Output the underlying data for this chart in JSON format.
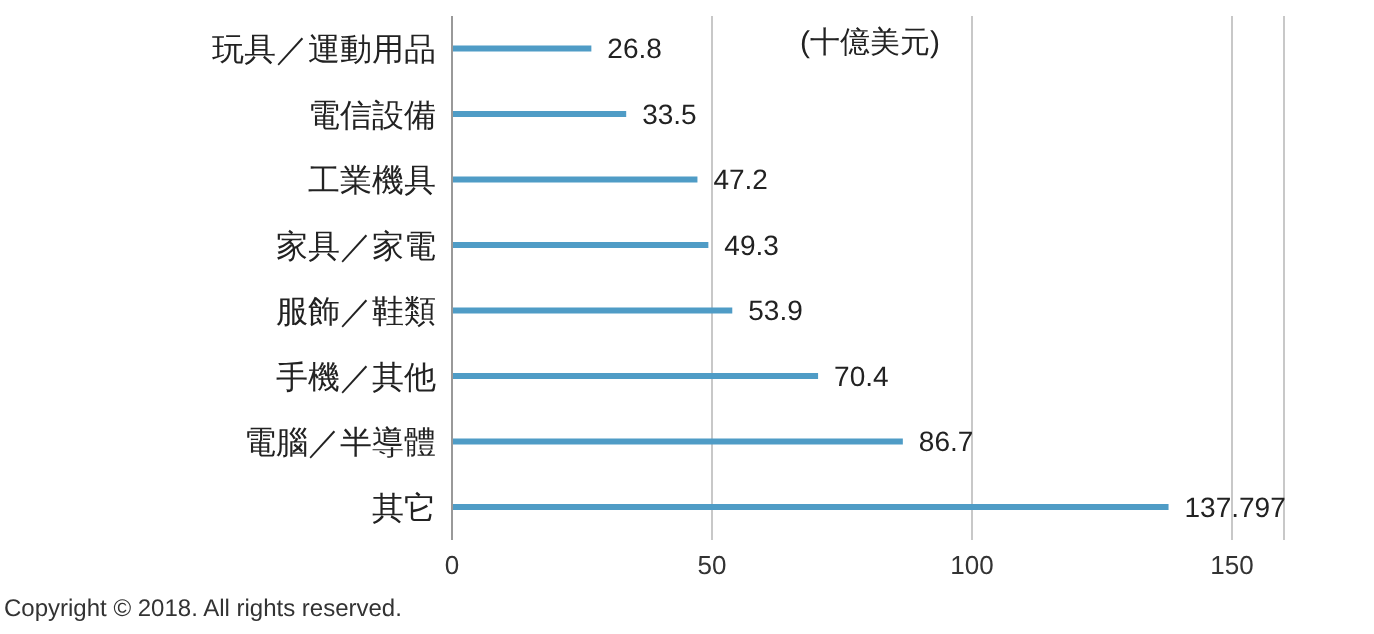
{
  "chart_data": {
    "type": "bar",
    "orientation": "horizontal",
    "categories": [
      "玩具／運動用品",
      "電信設備",
      "工業機具",
      "家具／家電",
      "服飾／鞋類",
      "手機／其他",
      "電腦／半導體",
      "其它"
    ],
    "values": [
      26.8,
      33.5,
      47.2,
      49.3,
      53.9,
      70.4,
      86.7,
      137.797
    ],
    "color": "#4f9cc6",
    "xlim": [
      0,
      160
    ],
    "xticks": [
      0,
      50,
      100,
      150
    ],
    "grid": "x",
    "data_labels": true,
    "annotations": [
      "(十億美元)",
      "Copyright © 2018. All rights reserved."
    ]
  }
}
